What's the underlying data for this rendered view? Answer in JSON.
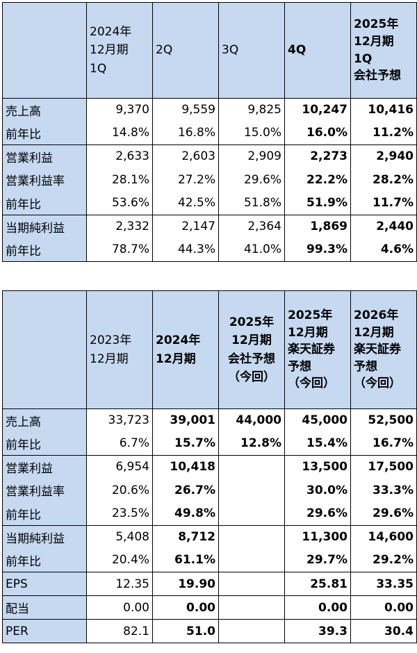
{
  "table1": {
    "headers": [
      {
        "lines": [
          "2024年",
          "12月期",
          "1Q"
        ],
        "bold": false
      },
      {
        "lines": [
          "2Q"
        ],
        "bold": false
      },
      {
        "lines": [
          "3Q"
        ],
        "bold": false
      },
      {
        "lines": [
          "4Q"
        ],
        "bold": true
      },
      {
        "lines": [
          "2025年",
          "12月期",
          "1Q",
          "会社予想"
        ],
        "bold": true
      }
    ],
    "rows": [
      {
        "label": "売上高",
        "values": [
          "9,370",
          "9,559",
          "9,825",
          "10,247",
          "10,416"
        ]
      },
      {
        "label": "前年比",
        "values": [
          "14.8%",
          "16.8%",
          "15.0%",
          "16.0%",
          "11.2%"
        ]
      },
      {
        "label": "営業利益",
        "values": [
          "2,633",
          "2,603",
          "2,909",
          "2,273",
          "2,940"
        ]
      },
      {
        "label": "営業利益率",
        "values": [
          "28.1%",
          "27.2%",
          "29.6%",
          "22.2%",
          "28.2%"
        ]
      },
      {
        "label": "前年比",
        "values": [
          "53.6%",
          "42.5%",
          "51.8%",
          "51.9%",
          "11.7%"
        ]
      },
      {
        "label": "当期純利益",
        "values": [
          "2,332",
          "2,147",
          "2,364",
          "1,869",
          "2,440"
        ]
      },
      {
        "label": "前年比",
        "values": [
          "78.7%",
          "44.3%",
          "41.0%",
          "99.3%",
          "4.6%"
        ]
      }
    ]
  },
  "table2": {
    "headers": [
      {
        "lines": [
          "2023年",
          "12月期"
        ],
        "bold": false
      },
      {
        "lines": [
          "2024年",
          "12月期"
        ],
        "bold": true
      },
      {
        "lines": [
          "2025年",
          "12月期",
          "会社予想",
          "（今回）"
        ],
        "bold": true
      },
      {
        "lines": [
          "2025年",
          "12月期",
          "楽天証券",
          "予想",
          "（今回）"
        ],
        "bold": true
      },
      {
        "lines": [
          "2026年",
          "12月期",
          "楽天証券",
          "予想",
          "（今回）"
        ],
        "bold": true
      }
    ],
    "rows": [
      {
        "label": "売上高",
        "values": [
          "33,723",
          "39,001",
          "44,000",
          "45,000",
          "52,500"
        ]
      },
      {
        "label": "前年比",
        "values": [
          "6.7%",
          "15.7%",
          "12.8%",
          "15.4%",
          "16.7%"
        ]
      },
      {
        "label": "営業利益",
        "values": [
          "6,954",
          "10,418",
          "",
          "13,500",
          "17,500"
        ]
      },
      {
        "label": "営業利益率",
        "values": [
          "20.6%",
          "26.7%",
          "",
          "30.0%",
          "33.3%"
        ]
      },
      {
        "label": "前年比",
        "values": [
          "23.5%",
          "49.8%",
          "",
          "29.6%",
          "29.6%"
        ]
      },
      {
        "label": "当期純利益",
        "values": [
          "5,408",
          "8,712",
          "",
          "11,300",
          "14,600"
        ]
      },
      {
        "label": "前年比",
        "values": [
          "20.4%",
          "61.1%",
          "",
          "29.7%",
          "29.2%"
        ]
      },
      {
        "label": "EPS",
        "values": [
          "12.35",
          "19.90",
          "",
          "25.81",
          "33.35"
        ]
      },
      {
        "label": "配当",
        "values": [
          "0.00",
          "0.00",
          "",
          "0.00",
          "0.00"
        ]
      },
      {
        "label": "PER",
        "values": [
          "82.1",
          "51.0",
          "",
          "39.3",
          "30.4"
        ]
      }
    ]
  }
}
